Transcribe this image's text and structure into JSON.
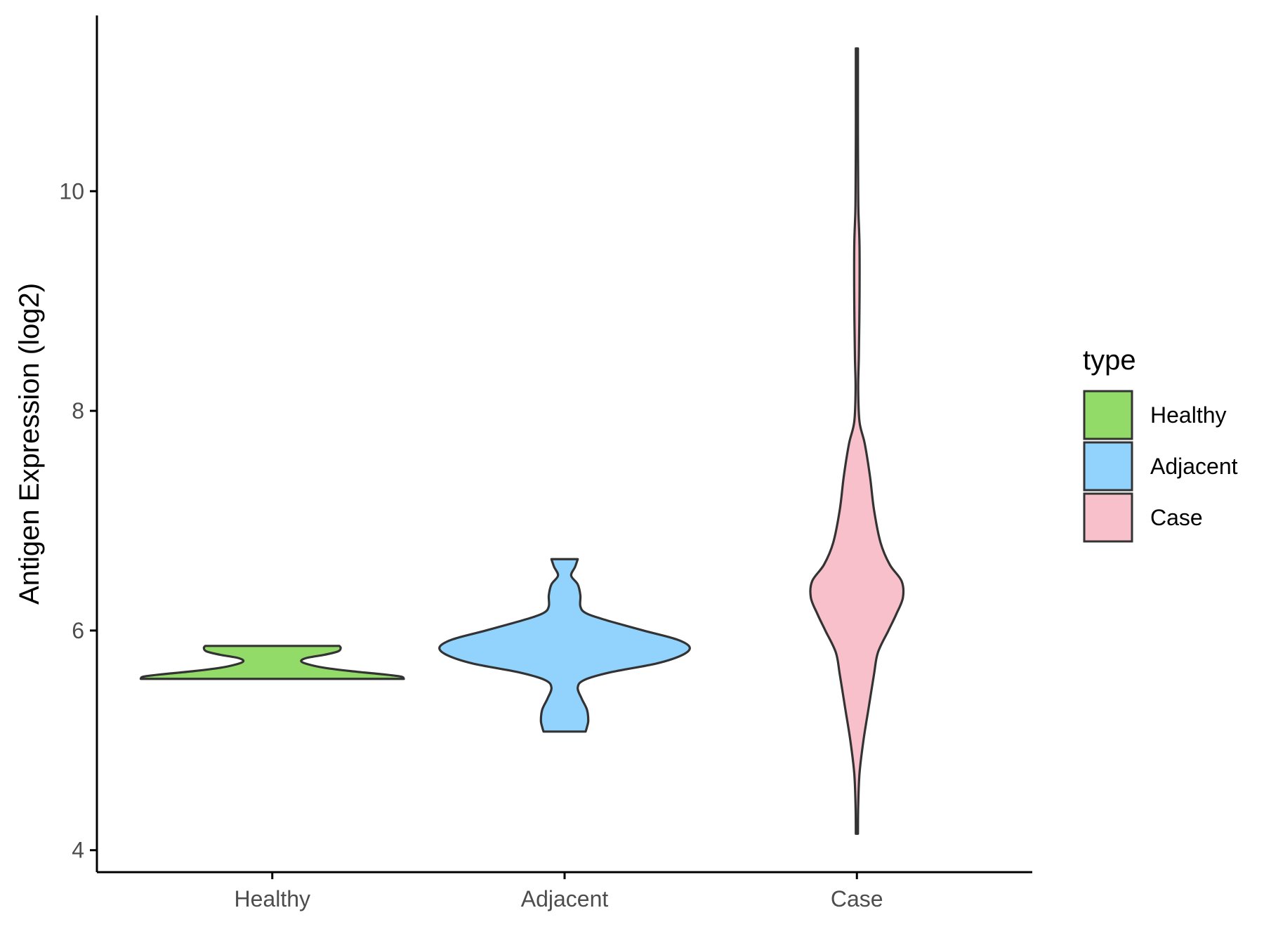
{
  "chart_data": {
    "type": "violin",
    "xlabel": "",
    "ylabel": "Antigen Expression (log2)",
    "ylim": [
      3.8,
      11.6
    ],
    "y_ticks": [
      4,
      6,
      8,
      10
    ],
    "categories": [
      "Healthy",
      "Adjacent",
      "Case"
    ],
    "grid": false,
    "legend": {
      "title": "type",
      "position": "right",
      "entries": [
        {
          "label": "Healthy",
          "color": "#93db69"
        },
        {
          "label": "Adjacent",
          "color": "#92d3fd"
        },
        {
          "label": "Case",
          "color": "#f7c0cb"
        }
      ]
    },
    "series": [
      {
        "category": "Healthy",
        "color": "#93db69",
        "y_min": 5.56,
        "y_max": 5.86,
        "profile": [
          [
            5.56,
            1.0
          ],
          [
            5.58,
            0.98
          ],
          [
            5.6,
            0.85
          ],
          [
            5.63,
            0.6
          ],
          [
            5.66,
            0.4
          ],
          [
            5.69,
            0.28
          ],
          [
            5.72,
            0.22
          ],
          [
            5.75,
            0.26
          ],
          [
            5.78,
            0.4
          ],
          [
            5.81,
            0.5
          ],
          [
            5.84,
            0.52
          ],
          [
            5.86,
            0.51
          ]
        ]
      },
      {
        "category": "Adjacent",
        "color": "#92d3fd",
        "y_min": 5.08,
        "y_max": 6.65,
        "profile": [
          [
            5.08,
            0.16
          ],
          [
            5.12,
            0.17
          ],
          [
            5.18,
            0.18
          ],
          [
            5.28,
            0.17
          ],
          [
            5.38,
            0.13
          ],
          [
            5.48,
            0.1
          ],
          [
            5.55,
            0.15
          ],
          [
            5.62,
            0.35
          ],
          [
            5.7,
            0.7
          ],
          [
            5.78,
            0.9
          ],
          [
            5.85,
            0.95
          ],
          [
            5.92,
            0.85
          ],
          [
            6.0,
            0.6
          ],
          [
            6.1,
            0.3
          ],
          [
            6.16,
            0.16
          ],
          [
            6.22,
            0.12
          ],
          [
            6.32,
            0.12
          ],
          [
            6.42,
            0.1
          ],
          [
            6.5,
            0.05
          ],
          [
            6.58,
            0.08
          ],
          [
            6.65,
            0.1
          ]
        ]
      },
      {
        "category": "Case",
        "color": "#f7c0cb",
        "y_min": 4.15,
        "y_max": 11.3,
        "profile": [
          [
            4.15,
            0.0
          ],
          [
            4.4,
            0.01
          ],
          [
            4.7,
            0.02
          ],
          [
            5.0,
            0.05
          ],
          [
            5.3,
            0.09
          ],
          [
            5.6,
            0.13
          ],
          [
            5.8,
            0.16
          ],
          [
            6.0,
            0.24
          ],
          [
            6.15,
            0.3
          ],
          [
            6.3,
            0.35
          ],
          [
            6.45,
            0.34
          ],
          [
            6.6,
            0.25
          ],
          [
            6.8,
            0.18
          ],
          [
            7.1,
            0.13
          ],
          [
            7.4,
            0.1
          ],
          [
            7.7,
            0.06
          ],
          [
            7.9,
            0.02
          ],
          [
            8.2,
            0.01
          ],
          [
            8.5,
            0.015
          ],
          [
            9.0,
            0.02
          ],
          [
            9.5,
            0.02
          ],
          [
            9.8,
            0.012
          ],
          [
            10.0,
            0.01
          ],
          [
            10.5,
            0.008
          ],
          [
            11.0,
            0.005
          ],
          [
            11.3,
            0.0
          ]
        ]
      }
    ]
  }
}
